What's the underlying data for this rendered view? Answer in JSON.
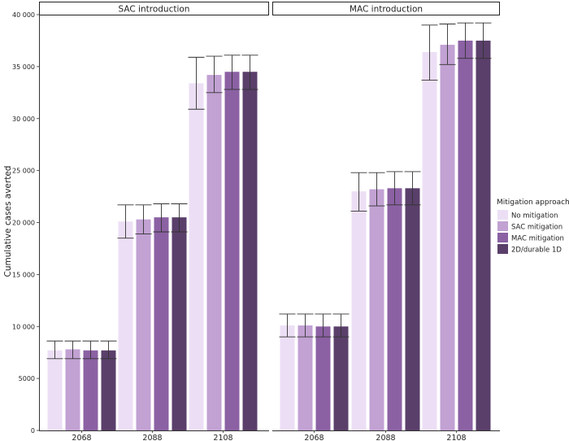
{
  "chart_data": {
    "type": "bar",
    "ylabel": "Cumulative cases averted",
    "ylim": [
      0,
      40000
    ],
    "yticks": [
      0,
      5000,
      10000,
      15000,
      20000,
      25000,
      30000,
      35000,
      40000
    ],
    "ytick_labels": [
      "0",
      "5000",
      "10 000",
      "15 000",
      "20 000",
      "25 000",
      "30 000",
      "35 000",
      "40 000"
    ],
    "categories": [
      "2068",
      "2088",
      "2108"
    ],
    "legend": {
      "title": "Mitigation approach",
      "placement": "right",
      "entries": [
        "No mitigation",
        "SAC mitigation",
        "MAC mitigation",
        "2D/durable 1D"
      ]
    },
    "series_colors": [
      "#ecdff5",
      "#c2a1d3",
      "#8b61a3",
      "#5a3f6a"
    ],
    "panels": [
      {
        "title": "SAC introduction",
        "series": [
          {
            "name": "No mitigation",
            "values": [
              7700,
              20100,
              33400
            ],
            "lower": [
              6900,
              18500,
              30900
            ],
            "upper": [
              8600,
              21700,
              35900
            ]
          },
          {
            "name": "SAC mitigation",
            "values": [
              7800,
              20300,
              34200
            ],
            "lower": [
              6900,
              18900,
              32500
            ],
            "upper": [
              8600,
              21700,
              36000
            ]
          },
          {
            "name": "MAC mitigation",
            "values": [
              7700,
              20500,
              34500
            ],
            "lower": [
              6900,
              19100,
              32800
            ],
            "upper": [
              8600,
              21800,
              36100
            ]
          },
          {
            "name": "2D/durable 1D",
            "values": [
              7700,
              20500,
              34500
            ],
            "lower": [
              6900,
              19100,
              32800
            ],
            "upper": [
              8600,
              21800,
              36100
            ]
          }
        ]
      },
      {
        "title": "MAC introduction",
        "series": [
          {
            "name": "No mitigation",
            "values": [
              10100,
              23000,
              36400
            ],
            "lower": [
              9000,
              21100,
              33700
            ],
            "upper": [
              11200,
              24800,
              39000
            ]
          },
          {
            "name": "SAC mitigation",
            "values": [
              10100,
              23200,
              37100
            ],
            "lower": [
              9000,
              21600,
              35200
            ],
            "upper": [
              11200,
              24800,
              39100
            ]
          },
          {
            "name": "MAC mitigation",
            "values": [
              10000,
              23300,
              37500
            ],
            "lower": [
              9000,
              21700,
              35800
            ],
            "upper": [
              11200,
              24900,
              39200
            ]
          },
          {
            "name": "2D/durable 1D",
            "values": [
              10000,
              23300,
              37500
            ],
            "lower": [
              9000,
              21700,
              35800
            ],
            "upper": [
              11200,
              24900,
              39200
            ]
          }
        ]
      }
    ]
  }
}
